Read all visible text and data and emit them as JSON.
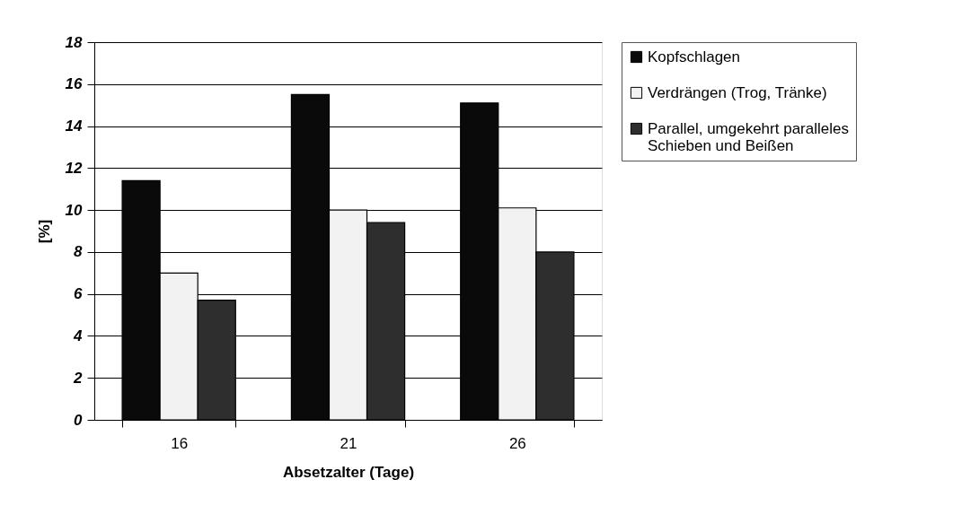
{
  "chart_data": {
    "type": "bar",
    "xlabel": "Absetzalter (Tage)",
    "ylabel": "[%]",
    "categories": [
      "16",
      "21",
      "26"
    ],
    "series": [
      {
        "name": "Kopfschlagen",
        "color": "#0a0a0a",
        "values": [
          11.4,
          15.5,
          15.1
        ]
      },
      {
        "name": "Verdrängen (Trog, Tränke)",
        "color": "#f2f2f2",
        "values": [
          7.0,
          10.0,
          10.1
        ]
      },
      {
        "name": "Parallel, umgekehrt paralleles Schieben und Beißen",
        "color": "#2e2e2e",
        "values": [
          5.7,
          9.4,
          8.0
        ]
      }
    ],
    "ylim": [
      0,
      18
    ],
    "yticks": [
      0,
      2,
      4,
      6,
      8,
      10,
      12,
      14,
      16,
      18
    ],
    "grid": "y",
    "legend": "right"
  }
}
